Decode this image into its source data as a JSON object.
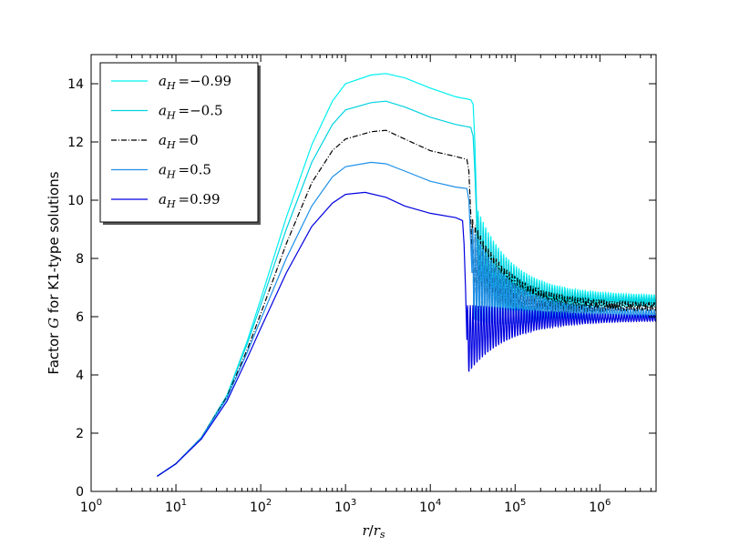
{
  "chart_data": {
    "type": "line",
    "xscale": "log",
    "xlim": [
      1,
      4600000
    ],
    "ylim": [
      0,
      15
    ],
    "xlabel": "r/r_s",
    "ylabel": "Factor G for K1-type solutions",
    "x_ticks": [
      {
        "value": 1,
        "base": "10",
        "exp": "0"
      },
      {
        "value": 10,
        "base": "10",
        "exp": "1"
      },
      {
        "value": 100,
        "base": "10",
        "exp": "2"
      },
      {
        "value": 1000,
        "base": "10",
        "exp": "3"
      },
      {
        "value": 10000,
        "base": "10",
        "exp": "4"
      },
      {
        "value": 100000,
        "base": "10",
        "exp": "5"
      },
      {
        "value": 1000000,
        "base": "10",
        "exp": "6"
      }
    ],
    "y_ticks": [
      0,
      2,
      4,
      6,
      8,
      10,
      12,
      14
    ],
    "grid": false,
    "legend_position": "top-left",
    "series": [
      {
        "name": "a_H = −0.99",
        "sub": "H",
        "value_text": "=−0.99",
        "color": "#00f0f0",
        "dash": "",
        "points": [
          [
            6,
            0.52
          ],
          [
            10,
            0.95
          ],
          [
            20,
            1.85
          ],
          [
            40,
            3.3
          ],
          [
            70,
            5.2
          ],
          [
            100,
            6.6
          ],
          [
            200,
            9.4
          ],
          [
            400,
            11.9
          ],
          [
            700,
            13.4
          ],
          [
            1000,
            14.0
          ],
          [
            2000,
            14.3
          ],
          [
            3000,
            14.35
          ],
          [
            5000,
            14.2
          ],
          [
            10000,
            13.85
          ],
          [
            20000,
            13.55
          ],
          [
            30000,
            13.45
          ],
          [
            32000,
            13.3
          ],
          [
            33500,
            12.0
          ],
          [
            35000,
            10.0
          ],
          [
            36000,
            8.2
          ]
        ],
        "osc": {
          "x0": 36000,
          "x1": 4600000,
          "start": 8.2,
          "end": 6.6,
          "amp0": 1.5,
          "amp1": 0.12
        }
      },
      {
        "name": "a_H = −0.5",
        "sub": "H",
        "value_text": "=−0.5",
        "color": "#00d2e0",
        "dash": "",
        "points": [
          [
            6,
            0.52
          ],
          [
            10,
            0.95
          ],
          [
            20,
            1.85
          ],
          [
            40,
            3.3
          ],
          [
            70,
            5.1
          ],
          [
            100,
            6.4
          ],
          [
            200,
            9.0
          ],
          [
            400,
            11.3
          ],
          [
            700,
            12.6
          ],
          [
            1000,
            13.1
          ],
          [
            2000,
            13.35
          ],
          [
            3000,
            13.4
          ],
          [
            5000,
            13.2
          ],
          [
            10000,
            12.85
          ],
          [
            20000,
            12.6
          ],
          [
            30000,
            12.5
          ],
          [
            32000,
            12.2
          ],
          [
            33500,
            11.0
          ],
          [
            35000,
            9.5
          ],
          [
            36000,
            8.0
          ]
        ],
        "osc": {
          "x0": 36000,
          "x1": 4600000,
          "start": 8.0,
          "end": 6.5,
          "amp0": 1.5,
          "amp1": 0.12
        }
      },
      {
        "name": "a_H = 0",
        "sub": "H",
        "value_text": "=0",
        "color": "#000000",
        "dash": "6 2 1 2",
        "points": [
          [
            6,
            0.52
          ],
          [
            10,
            0.95
          ],
          [
            20,
            1.85
          ],
          [
            40,
            3.25
          ],
          [
            70,
            4.9
          ],
          [
            100,
            6.1
          ],
          [
            200,
            8.5
          ],
          [
            400,
            10.6
          ],
          [
            700,
            11.7
          ],
          [
            1000,
            12.1
          ],
          [
            2000,
            12.35
          ],
          [
            3000,
            12.4
          ],
          [
            5000,
            12.1
          ],
          [
            10000,
            11.7
          ],
          [
            20000,
            11.5
          ],
          [
            27000,
            11.4
          ],
          [
            28500,
            11.0
          ],
          [
            30000,
            9.5
          ],
          [
            31000,
            7.8
          ]
        ],
        "osc": {
          "x0": 31000,
          "x1": 4600000,
          "start": 7.8,
          "end": 6.35,
          "amp0": 1.6,
          "amp1": 0.1
        }
      },
      {
        "name": "a_H = 0.5",
        "sub": "H",
        "value_text": "=0.5",
        "color": "#1e90e8",
        "dash": "",
        "points": [
          [
            6,
            0.52
          ],
          [
            10,
            0.95
          ],
          [
            20,
            1.85
          ],
          [
            40,
            3.2
          ],
          [
            70,
            4.8
          ],
          [
            100,
            5.9
          ],
          [
            200,
            8.0
          ],
          [
            400,
            9.8
          ],
          [
            700,
            10.8
          ],
          [
            1000,
            11.15
          ],
          [
            2000,
            11.3
          ],
          [
            3000,
            11.25
          ],
          [
            5000,
            11.0
          ],
          [
            10000,
            10.65
          ],
          [
            20000,
            10.45
          ],
          [
            27000,
            10.4
          ],
          [
            28500,
            10.0
          ],
          [
            30000,
            8.5
          ],
          [
            31000,
            7.5
          ]
        ],
        "osc": {
          "x0": 31000,
          "x1": 4600000,
          "start": 7.5,
          "end": 6.1,
          "amp0": 1.6,
          "amp1": 0.1
        }
      },
      {
        "name": "a_H = 0.99",
        "sub": "H",
        "value_text": "=0.99",
        "color": "#0000e0",
        "dash": "",
        "points": [
          [
            6,
            0.52
          ],
          [
            10,
            0.95
          ],
          [
            20,
            1.8
          ],
          [
            40,
            3.1
          ],
          [
            70,
            4.6
          ],
          [
            100,
            5.6
          ],
          [
            200,
            7.5
          ],
          [
            400,
            9.1
          ],
          [
            700,
            9.9
          ],
          [
            1000,
            10.2
          ],
          [
            1700,
            10.27
          ],
          [
            3000,
            10.1
          ],
          [
            5000,
            9.8
          ],
          [
            10000,
            9.55
          ],
          [
            20000,
            9.4
          ],
          [
            24000,
            9.3
          ],
          [
            25000,
            8.5
          ],
          [
            26000,
            7.0
          ],
          [
            27000,
            5.2
          ]
        ],
        "osc": {
          "x0": 27000,
          "x1": 4600000,
          "start": 5.2,
          "end": 5.95,
          "amp0": 1.2,
          "amp1": 0.08
        }
      }
    ]
  }
}
